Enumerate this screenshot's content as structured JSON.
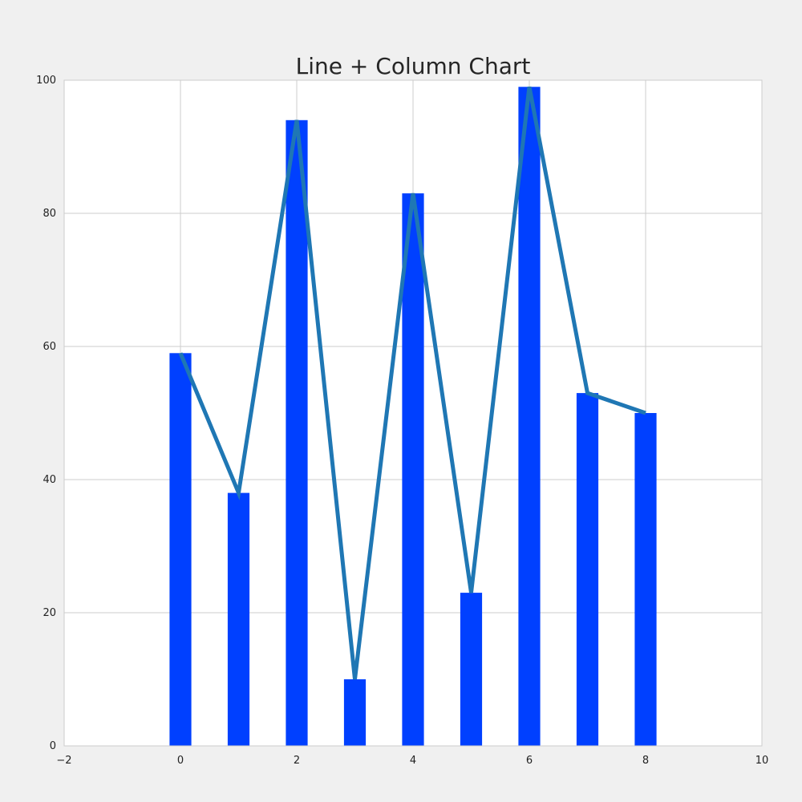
{
  "chart_data": {
    "type": "bar",
    "title": "Line + Column Chart",
    "xlabel": "",
    "ylabel": "",
    "x": [
      0,
      1,
      2,
      3,
      4,
      5,
      6,
      7,
      8
    ],
    "series": [
      {
        "kind": "bar",
        "values": [
          59,
          38,
          94,
          10,
          83,
          23,
          99,
          53,
          50
        ],
        "color": "#0040ff"
      },
      {
        "kind": "line",
        "values": [
          59,
          38,
          94,
          10,
          83,
          23,
          99,
          53,
          50
        ],
        "color": "#1f77b4"
      }
    ],
    "xlim": [
      -2,
      10
    ],
    "ylim": [
      0,
      100
    ],
    "xticks": [
      -2,
      0,
      2,
      4,
      6,
      8,
      10
    ],
    "xtick_labels": [
      "−2",
      "0",
      "2",
      "4",
      "6",
      "8",
      "10"
    ],
    "yticks": [
      0,
      20,
      40,
      60,
      80,
      100
    ],
    "ytick_labels": [
      "0",
      "20",
      "40",
      "60",
      "80",
      "100"
    ],
    "grid": true,
    "legend": "none",
    "background": "#f0f0f0",
    "plot_background": "#ffffff"
  }
}
